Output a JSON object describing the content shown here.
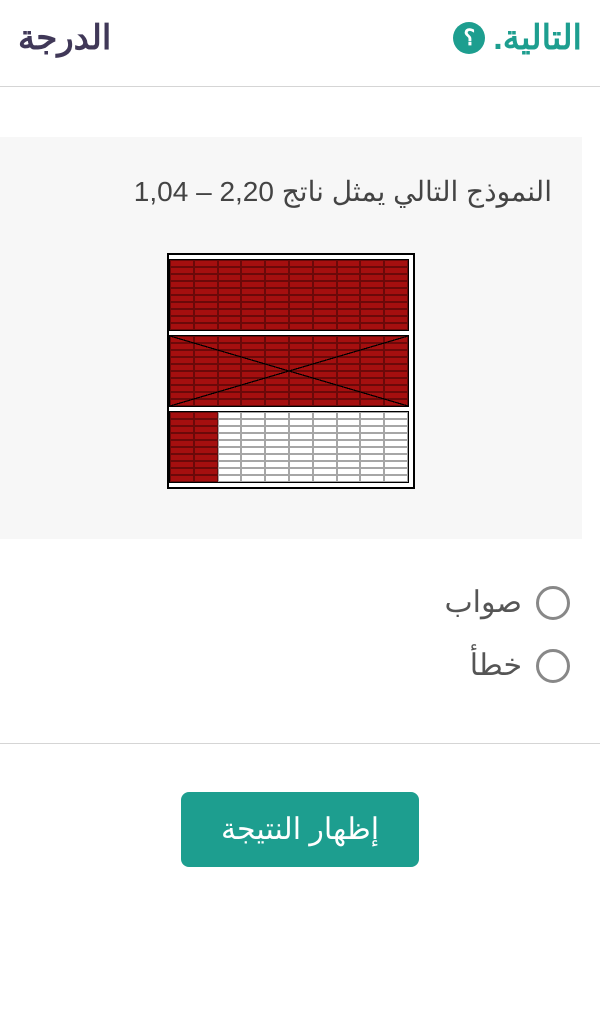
{
  "header": {
    "right_label": "التالية.",
    "left_label": "الدرجة",
    "accent_color": "#1d9e8f",
    "secondary_color": "#403858"
  },
  "question": {
    "text": "النموذج التالي يمثل ناتج  2,20 – 1,04",
    "text_color": "#444444",
    "card_bg": "#f7f7f7",
    "diagram": {
      "type": "decimal-grid-model",
      "border_color": "#000000",
      "fill_color": "#a50f0f",
      "empty_color": "#ffffff",
      "blocks": [
        {
          "kind": "full",
          "filled": true,
          "crossed": false,
          "cols": 10,
          "rows": 10
        },
        {
          "kind": "full",
          "filled": true,
          "crossed": true,
          "cols": 10,
          "rows": 10
        },
        {
          "kind": "partial",
          "cols": 10,
          "rows": 10,
          "filled_cols_from_right": 2
        }
      ]
    }
  },
  "options": [
    {
      "label": "صواب",
      "value": "true"
    },
    {
      "label": "خطأ",
      "value": "false"
    }
  ],
  "button": {
    "label": "إظهار النتيجة",
    "bg": "#1d9e8f",
    "fg": "#ffffff"
  },
  "radio_border": "#888888",
  "option_text_color": "#555555"
}
